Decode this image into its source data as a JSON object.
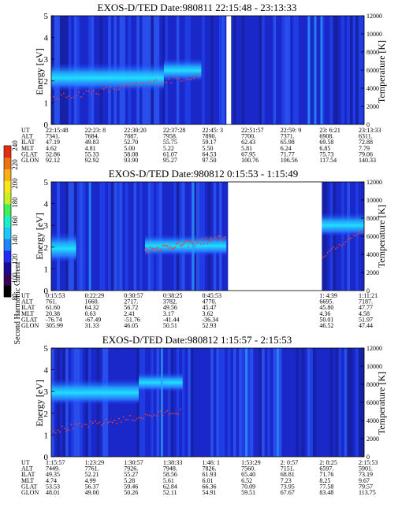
{
  "page": {
    "background": "#ffffff"
  },
  "colorbar": {
    "label": "Second Harmonic Current",
    "tick_labels": [
      "80",
      "100",
      "120",
      "140",
      "160",
      "180",
      "200",
      "220",
      "240"
    ],
    "colors": [
      "#000000",
      "#3a0058",
      "#1b0a9a",
      "#1f2ff5",
      "#1f84ff",
      "#1ec8ff",
      "#18f0c6",
      "#3ff05a",
      "#c8f020",
      "#f8e81a",
      "#f8b014",
      "#f07012",
      "#e82a10"
    ]
  },
  "chart_data": [
    {
      "type": "heatmap",
      "title": "EXOS-D/TED   Date:980811  22:15:48 - 23:13:33",
      "ylabel": "Energy [eV]",
      "y2label": "Temperature [K]",
      "ylim": [
        0,
        5
      ],
      "y2lim": [
        0,
        12000
      ],
      "yticks": [
        "0",
        "1",
        "2",
        "3",
        "4",
        "5"
      ],
      "y2ticks": [
        "0",
        "2000",
        "4000",
        "6000",
        "8000",
        "10000",
        "12000"
      ],
      "orbit_table": {
        "row_labels": [
          "UT",
          "ALT",
          "ILAT",
          "MLT",
          "GLAT",
          "GLON"
        ],
        "columns": [
          [
            "22:15:48",
            "7341.",
            "47.19",
            "4.62",
            "52.86",
            "92.12"
          ],
          [
            "22:23: 8",
            "7684.",
            "49.83",
            "4.81",
            "55.33",
            "92.92"
          ],
          [
            "22:30:20",
            "7887.",
            "52.70",
            "5.00",
            "58.08",
            "93.90"
          ],
          [
            "22:37:28",
            "7958.",
            "55.75",
            "5.22",
            "61.07",
            "95.27"
          ],
          [
            "22:45: 3",
            "7890.",
            "59.17",
            "5.50",
            "64.53",
            "97.50"
          ],
          [
            "22:51:57",
            "7700.",
            "62.43",
            "5.81",
            "67.95",
            "100.76"
          ],
          [
            "22:59: 9",
            "7371.",
            "65.98",
            "6.24",
            "71.77",
            "106.56"
          ],
          [
            "23: 6:21",
            "6908.",
            "69.58",
            "6.85",
            "75.73",
            "117.54"
          ],
          [
            "23:13:33",
            "6311.",
            "72.88",
            "7.79",
            "79.06",
            "140.33"
          ]
        ]
      },
      "data_gaps": [
        [
          0.56,
          0.575
        ]
      ]
    },
    {
      "type": "heatmap",
      "title": "EXOS-D/TED   Date:980812   0:15:53 - 1:15:49",
      "ylabel": "Energy [eV]",
      "y2label": "Temperature [K]",
      "ylim": [
        0,
        5
      ],
      "y2lim": [
        0,
        12000
      ],
      "yticks": [
        "0",
        "1",
        "2",
        "3",
        "4",
        "5"
      ],
      "y2ticks": [
        "0",
        "2000",
        "4000",
        "6000",
        "8000",
        "10000",
        "12000"
      ],
      "orbit_table": {
        "row_labels": [
          "UT",
          "ALT",
          "ILAT",
          "MLT",
          "GLAT",
          "GLON"
        ],
        "columns": [
          [
            "0:15:53",
            "761.",
            "61.60",
            "20.38",
            "-76.74",
            "305.99"
          ],
          [
            "0:22:29",
            "1660.",
            "64.32",
            "0.63",
            "-67.49",
            "31.33"
          ],
          [
            "0:30:57",
            "2717.",
            "56.72",
            "2.41",
            "-51.76",
            "46.05"
          ],
          [
            "0:38:25",
            "3782.",
            "49.56",
            "3.17",
            "-41.44",
            "50.51"
          ],
          [
            "0:45:53",
            "4770.",
            "45.47",
            "3.62",
            "-36.34",
            "52.93"
          ],
          [
            "",
            "",
            "",
            "",
            "",
            ""
          ],
          [
            "",
            "",
            "",
            "",
            "",
            ""
          ],
          [
            "1: 4:39",
            "6695.",
            "45.80",
            "4.36",
            "50.01",
            "46.52"
          ],
          [
            "1:11:21",
            "7187.",
            "47.77",
            "4.58",
            "51.97",
            "47.44"
          ]
        ]
      },
      "data_gaps": [
        [
          0.0,
          0.0
        ],
        [
          0.565,
          0.865
        ]
      ]
    },
    {
      "type": "heatmap",
      "title": "EXOS-D/TED   Date:980812   1:15:57 - 2:15:53",
      "ylabel": "Energy [eV]",
      "y2label": "Temperature [K]",
      "ylim": [
        0,
        5
      ],
      "y2lim": [
        0,
        12000
      ],
      "yticks": [
        "0",
        "1",
        "2",
        "3",
        "4",
        "5"
      ],
      "y2ticks": [
        "0",
        "2000",
        "4000",
        "6000",
        "8000",
        "10000",
        "12000"
      ],
      "orbit_table": {
        "row_labels": [
          "UT",
          "ALT",
          "ILAT",
          "MLT",
          "GLAT",
          "GLON"
        ],
        "columns": [
          [
            "1:15:57",
            "7449.",
            "49.35",
            "4.74",
            "53.53",
            "48.01"
          ],
          [
            "1:23:29",
            "7761.",
            "52.21",
            "4.99",
            "56.37",
            "49.00"
          ],
          [
            "1:30:57",
            "7926.",
            "55.27",
            "5.28",
            "59.46",
            "50.26"
          ],
          [
            "1:38:33",
            "7948.",
            "58.56",
            "5.61",
            "62.84",
            "52.11"
          ],
          [
            "1:46: 1",
            "7826.",
            "61.93",
            "6.01",
            "66.36",
            "54.91"
          ],
          [
            "1:53:29",
            "7560.",
            "65.40",
            "6.52",
            "70.09",
            "59.51"
          ],
          [
            "2: 0:57",
            "7151.",
            "68.81",
            "7.23",
            "73.95",
            "67.67"
          ],
          [
            "2: 8:25",
            "6597.",
            "71.76",
            "8.25",
            "77.58",
            "83.48"
          ],
          [
            "2:15:53",
            "5901.",
            "73.19",
            "9.67",
            "79.57",
            "113.75"
          ]
        ]
      },
      "data_gaps": []
    }
  ]
}
